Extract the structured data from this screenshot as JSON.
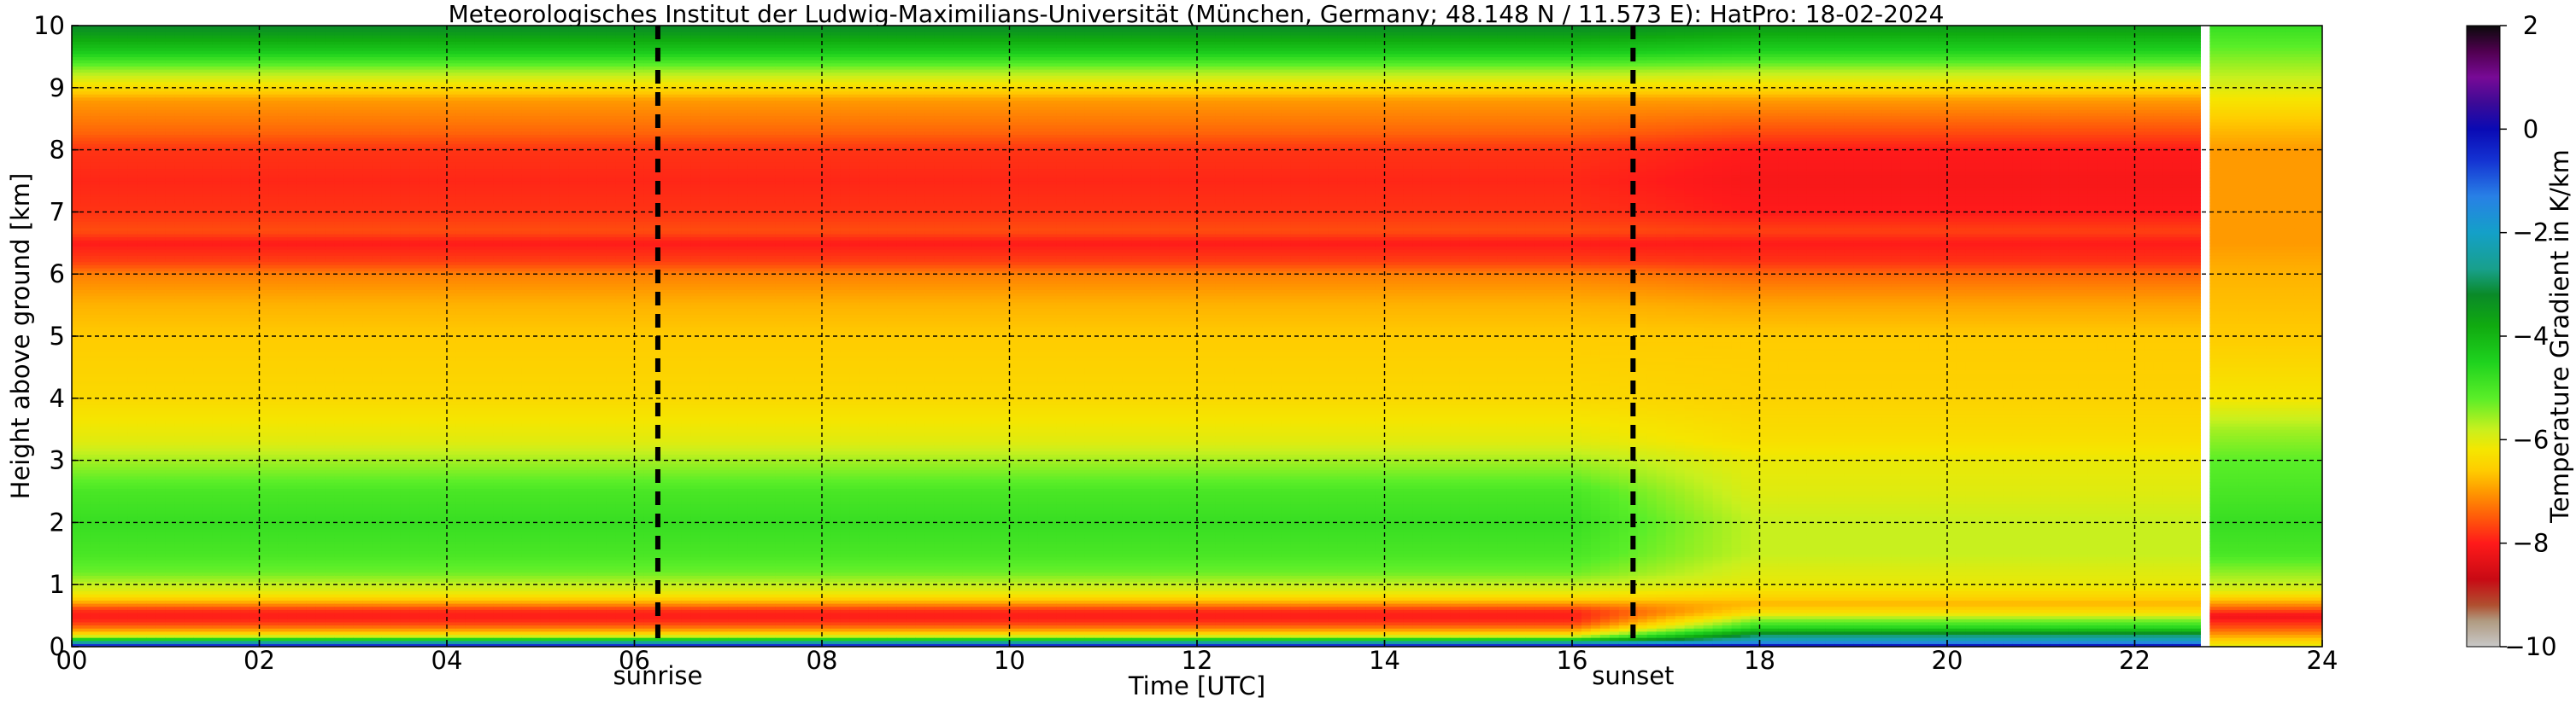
{
  "chart_data": {
    "type": "heatmap",
    "title": "Meteorologisches Institut der Ludwig-Maximilians-Universität (München, Germany; 48.148 N / 11.573 E):    HatPro: 18-02-2024",
    "xlabel": "Time [UTC]",
    "ylabel": "Height above ground [km]",
    "xlim": [
      0,
      24
    ],
    "ylim": [
      0,
      10
    ],
    "x_ticks": [
      "00",
      "02",
      "04",
      "06",
      "08",
      "10",
      "12",
      "14",
      "16",
      "18",
      "20",
      "22",
      "24"
    ],
    "y_ticks": [
      "0",
      "1",
      "2",
      "3",
      "4",
      "5",
      "6",
      "7",
      "8",
      "9",
      "10"
    ],
    "grid": true,
    "colorbar": {
      "label": "Temperature Gradient in K/km",
      "range": [
        -10,
        2
      ],
      "ticks": [
        "2",
        "0",
        "−2",
        "−4",
        "−6",
        "−8",
        "−10"
      ],
      "stops": [
        {
          "v": -10,
          "color": "#c8c8c8"
        },
        {
          "v": -9.5,
          "color": "#b09a80"
        },
        {
          "v": -9.2,
          "color": "#b05030"
        },
        {
          "v": -8.7,
          "color": "#c80a14"
        },
        {
          "v": -8,
          "color": "#ff1a1a"
        },
        {
          "v": -7.5,
          "color": "#ff5a0a"
        },
        {
          "v": -7,
          "color": "#ff9a00"
        },
        {
          "v": -6.6,
          "color": "#ffcc00"
        },
        {
          "v": -6.2,
          "color": "#f5e600"
        },
        {
          "v": -5.8,
          "color": "#c8f01e"
        },
        {
          "v": -5.2,
          "color": "#5aee28"
        },
        {
          "v": -4.5,
          "color": "#1ed21e"
        },
        {
          "v": -3.8,
          "color": "#10aa10"
        },
        {
          "v": -3.2,
          "color": "#0a8a28"
        },
        {
          "v": -2.7,
          "color": "#18a08c"
        },
        {
          "v": -2,
          "color": "#14a0c8"
        },
        {
          "v": -1.3,
          "color": "#2880e6"
        },
        {
          "v": -0.6,
          "color": "#1432d2"
        },
        {
          "v": 0,
          "color": "#0a0ab4"
        },
        {
          "v": 0.5,
          "color": "#3c0a96"
        },
        {
          "v": 1,
          "color": "#780a96"
        },
        {
          "v": 1.5,
          "color": "#500050"
        },
        {
          "v": 2,
          "color": "#0a0a0a"
        }
      ]
    },
    "markers": [
      {
        "time": 6.25,
        "label": "sunrise"
      },
      {
        "time": 16.65,
        "label": "sunset"
      }
    ],
    "data_gap": {
      "start": 22.75,
      "end": 22.85
    },
    "gradient_profiles": [
      {
        "period": "00–16 UTC",
        "heights_km": [
          0,
          0.05,
          0.1,
          0.15,
          0.2,
          0.3,
          0.4,
          0.5,
          0.6,
          0.7,
          0.8,
          0.9,
          1.0,
          1.2,
          1.5,
          2.0,
          2.5,
          3.0,
          3.3,
          4.0,
          5.0,
          5.5,
          6.0,
          6.2,
          6.5,
          6.7,
          7.0,
          7.5,
          8.0,
          8.3,
          8.8,
          9.0,
          9.3,
          9.6,
          10
        ],
        "gradient_k_per_km": [
          0.3,
          -1.5,
          -3.5,
          -5.5,
          -6.3,
          -7.2,
          -7.8,
          -8.0,
          -7.8,
          -7.0,
          -6.4,
          -6.0,
          -5.8,
          -5.3,
          -5.0,
          -4.8,
          -5.0,
          -5.6,
          -6.0,
          -6.4,
          -6.6,
          -6.8,
          -7.2,
          -7.7,
          -8.0,
          -7.6,
          -7.8,
          -7.9,
          -7.8,
          -7.4,
          -7.0,
          -6.4,
          -5.5,
          -4.3,
          -3.2
        ]
      },
      {
        "period": "16–23 UTC",
        "heights_km": [
          0,
          0.05,
          0.1,
          0.2,
          0.3,
          0.45,
          0.55,
          0.7,
          0.8,
          0.9,
          1.0,
          1.2,
          1.5,
          2.0,
          2.5,
          3.0,
          3.3,
          4.0,
          5.0,
          5.5,
          6.0,
          6.2,
          6.5,
          6.7,
          7.0,
          7.5,
          8.0,
          8.3,
          8.8,
          9.0,
          9.3,
          9.6,
          10
        ],
        "gradient_k_per_km": [
          0.5,
          -1.0,
          -2.0,
          -3.0,
          -4.5,
          -5.5,
          -6.3,
          -6.8,
          -6.5,
          -6.3,
          -6.1,
          -6.0,
          -5.8,
          -5.8,
          -6.0,
          -6.1,
          -6.3,
          -6.5,
          -6.6,
          -6.9,
          -7.4,
          -7.8,
          -8.0,
          -7.7,
          -8.0,
          -8.1,
          -8.0,
          -7.6,
          -7.0,
          -6.4,
          -5.6,
          -4.5,
          -3.5
        ]
      },
      {
        "period": "23–24 UTC",
        "heights_km": [
          0,
          0.1,
          0.2,
          0.3,
          0.5,
          0.7,
          0.9,
          1.2,
          1.5,
          2.0,
          2.5,
          3.0,
          3.5,
          4.0,
          5.0,
          6.0,
          6.5,
          7.0,
          8.0,
          8.5,
          9.0,
          9.5,
          10
        ],
        "gradient_k_per_km": [
          -6.0,
          -6.5,
          -7.0,
          -7.5,
          -8.2,
          -7.0,
          -6.0,
          -5.5,
          -5.0,
          -4.8,
          -5.0,
          -5.2,
          -5.6,
          -6.2,
          -6.6,
          -6.8,
          -7.0,
          -7.0,
          -7.0,
          -6.6,
          -6.0,
          -5.4,
          -4.8
        ]
      }
    ]
  }
}
